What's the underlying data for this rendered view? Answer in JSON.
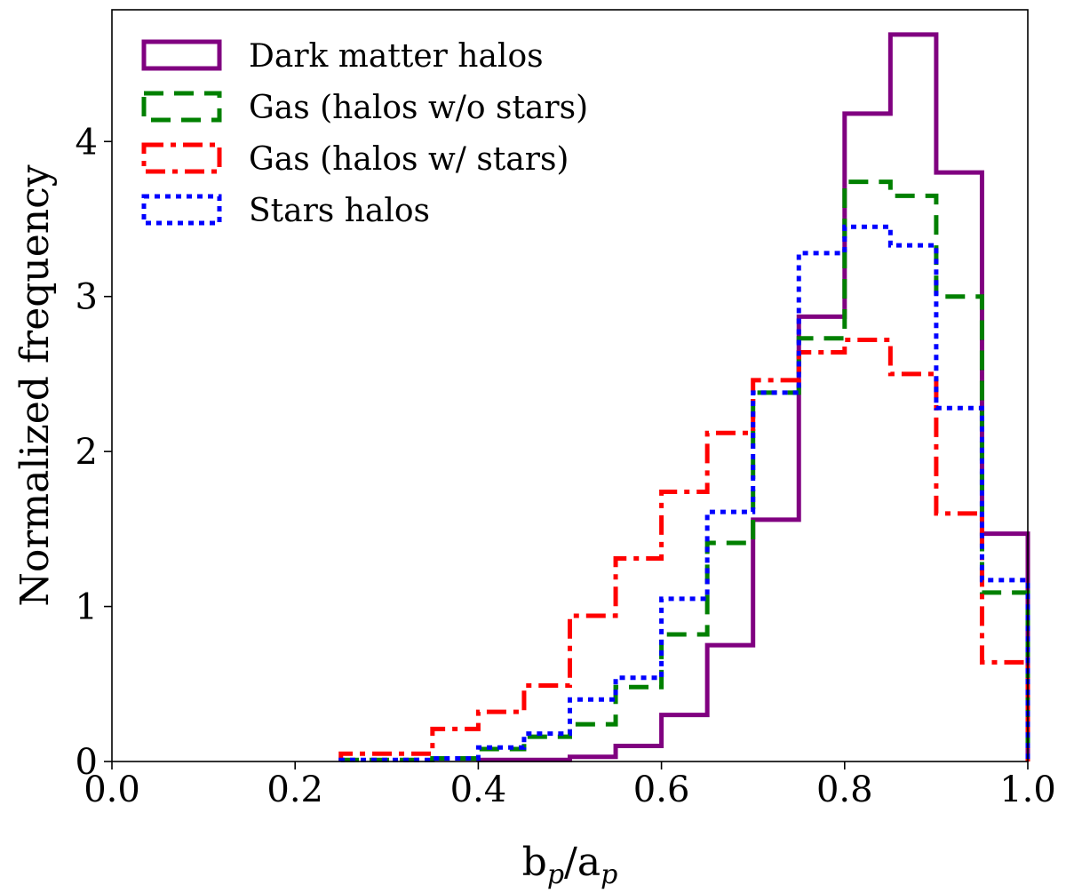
{
  "chart_data": {
    "type": "histogram-step",
    "xlabel": "b_p/a_p",
    "ylabel": "Normalized frequency",
    "xlim": [
      0.0,
      1.0
    ],
    "ylim": [
      0.0,
      4.85
    ],
    "xticks": [
      0.0,
      0.2,
      0.4,
      0.6,
      0.8,
      1.0
    ],
    "xtick_labels": [
      "0.0",
      "0.2",
      "0.4",
      "0.6",
      "0.8",
      "1.0"
    ],
    "yticks": [
      0,
      1,
      2,
      3,
      4
    ],
    "ytick_labels": [
      "0",
      "1",
      "2",
      "3",
      "4"
    ],
    "bin_edges": [
      0.0,
      0.05,
      0.1,
      0.15,
      0.2,
      0.25,
      0.3,
      0.35,
      0.4,
      0.45,
      0.5,
      0.55,
      0.6,
      0.65,
      0.7,
      0.75,
      0.8,
      0.85,
      0.9,
      0.95,
      1.0
    ],
    "legend_position": "top-left",
    "series": [
      {
        "name": "Dark matter halos",
        "color": "#800080",
        "style": "solid",
        "values": [
          0,
          0,
          0,
          0,
          0,
          0,
          0,
          0,
          0.01,
          0.01,
          0.03,
          0.1,
          0.3,
          0.75,
          1.56,
          2.87,
          4.18,
          4.69,
          3.8,
          1.47
        ]
      },
      {
        "name": "Gas (halos w/o stars)",
        "color": "#008000",
        "style": "dashed",
        "values": [
          0,
          0,
          0,
          0,
          0,
          0.01,
          0.01,
          0.02,
          0.08,
          0.16,
          0.24,
          0.48,
          0.82,
          1.41,
          2.38,
          2.73,
          3.74,
          3.65,
          3.0,
          1.09
        ]
      },
      {
        "name": "Gas (halos w/ stars)",
        "color": "#ff0000",
        "style": "dashdot",
        "values": [
          0,
          0,
          0,
          0,
          0,
          0.05,
          0.05,
          0.21,
          0.32,
          0.49,
          0.94,
          1.31,
          1.74,
          2.12,
          2.46,
          2.64,
          2.72,
          2.5,
          1.6,
          0.64
        ]
      },
      {
        "name": "Stars halos",
        "color": "#0000ff",
        "style": "dotted",
        "values": [
          0,
          0,
          0,
          0,
          0,
          0.01,
          0.01,
          0.02,
          0.09,
          0.18,
          0.4,
          0.54,
          1.05,
          1.61,
          2.38,
          3.28,
          3.45,
          3.33,
          2.28,
          1.17
        ]
      }
    ]
  }
}
